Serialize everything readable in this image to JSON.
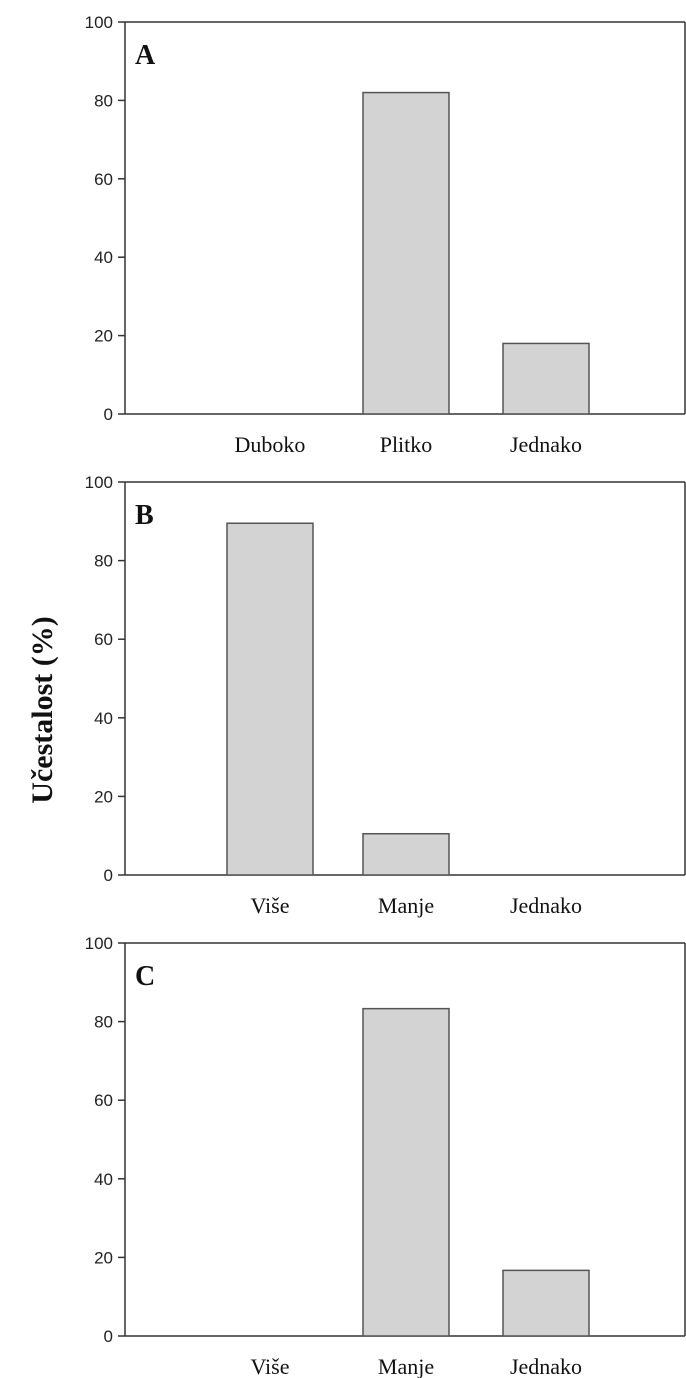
{
  "ylabel": "Učestalost (%)",
  "colors": {
    "bar_fill": "#d3d3d3",
    "bar_stroke": "#555555",
    "axis": "#333333"
  },
  "chart_data": [
    {
      "type": "bar",
      "panel": "A",
      "categories": [
        "Duboko",
        "Plitko",
        "Jednako"
      ],
      "values": [
        0,
        82,
        18
      ],
      "ylim": [
        0,
        100
      ],
      "yticks": [
        0,
        20,
        40,
        60,
        80,
        100
      ],
      "grid": false
    },
    {
      "type": "bar",
      "panel": "B",
      "categories": [
        "Više",
        "Manje",
        "Jednako"
      ],
      "values": [
        89.5,
        10.5,
        0
      ],
      "ylim": [
        0,
        100
      ],
      "yticks": [
        0,
        20,
        40,
        60,
        80,
        100
      ],
      "grid": false
    },
    {
      "type": "bar",
      "panel": "C",
      "categories": [
        "Više",
        "Manje",
        "Jednako"
      ],
      "values": [
        0,
        83.3,
        16.7
      ],
      "ylim": [
        0,
        100
      ],
      "yticks": [
        0,
        20,
        40,
        60,
        80,
        100
      ],
      "grid": false
    }
  ]
}
